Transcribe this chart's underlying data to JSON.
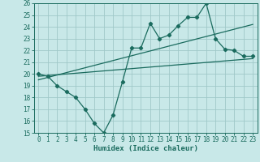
{
  "bg_color": "#c8e8e8",
  "grid_color": "#a0c8c8",
  "line_color": "#1a6b5e",
  "xlabel": "Humidex (Indice chaleur)",
  "ylim": [
    15,
    26
  ],
  "xlim": [
    -0.5,
    23.5
  ],
  "yticks": [
    15,
    16,
    17,
    18,
    19,
    20,
    21,
    22,
    23,
    24,
    25,
    26
  ],
  "xticks": [
    0,
    1,
    2,
    3,
    4,
    5,
    6,
    7,
    8,
    9,
    10,
    11,
    12,
    13,
    14,
    15,
    16,
    17,
    18,
    19,
    20,
    21,
    22,
    23
  ],
  "data_x": [
    0,
    1,
    2,
    3,
    4,
    5,
    6,
    7,
    8,
    9,
    10,
    11,
    12,
    13,
    14,
    15,
    16,
    17,
    18,
    19,
    20,
    21,
    22,
    23
  ],
  "data_y": [
    20,
    19.8,
    19.0,
    18.5,
    18.0,
    17.0,
    15.8,
    15.0,
    16.5,
    19.3,
    22.2,
    22.2,
    24.3,
    23.0,
    23.3,
    24.1,
    24.8,
    24.8,
    26.0,
    23.0,
    22.1,
    22.0,
    21.5,
    21.5
  ],
  "line1_x": [
    0,
    23
  ],
  "line1_y": [
    19.8,
    21.3
  ],
  "line2_x": [
    0,
    23
  ],
  "line2_y": [
    19.5,
    24.2
  ],
  "marker": "D",
  "markersize": 2.2,
  "linewidth": 0.9,
  "tick_fontsize": 5.5,
  "xlabel_fontsize": 6.5
}
